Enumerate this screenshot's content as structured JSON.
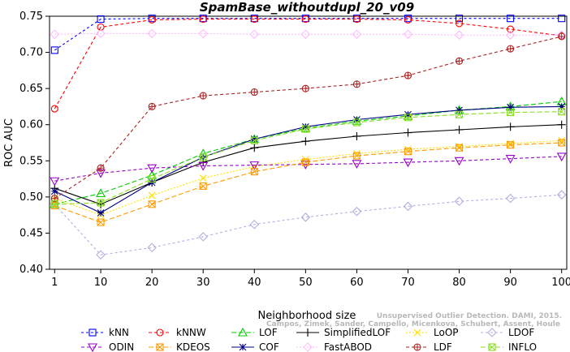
{
  "chart_data": {
    "type": "line",
    "title": "SpamBase_withoutdupl_20_v09",
    "xlabel": "Neighborhood size",
    "ylabel": "ROC AUC",
    "xlim": [
      0,
      101
    ],
    "ylim": [
      0.4,
      0.75
    ],
    "xticks": [
      1,
      10,
      20,
      30,
      40,
      50,
      60,
      70,
      80,
      90,
      100
    ],
    "yticks": [
      0.4,
      0.45,
      0.5,
      0.55,
      0.6,
      0.65,
      0.7,
      0.75
    ],
    "x": [
      1,
      10,
      20,
      30,
      40,
      50,
      60,
      70,
      80,
      90,
      100
    ],
    "grid": false,
    "legend_position": "bottom",
    "series": [
      {
        "name": "kNN",
        "color": "#0000ff",
        "marker": "square",
        "dash": "3,3",
        "values": [
          0.703,
          0.746,
          0.747,
          0.747,
          0.747,
          0.747,
          0.747,
          0.747,
          0.747,
          0.747,
          0.747
        ]
      },
      {
        "name": "kNNW",
        "color": "#ff0000",
        "marker": "circle",
        "dash": "4,3",
        "values": [
          0.622,
          0.735,
          0.745,
          0.746,
          0.746,
          0.746,
          0.746,
          0.745,
          0.74,
          0.732,
          0.723
        ]
      },
      {
        "name": "LOF",
        "color": "#00cc00",
        "marker": "triangle-up",
        "dash": "6,3",
        "values": [
          0.49,
          0.505,
          0.53,
          0.56,
          0.58,
          0.595,
          0.605,
          0.612,
          0.62,
          0.625,
          0.632
        ]
      },
      {
        "name": "SimplifiedLOF",
        "color": "#000000",
        "marker": "plus",
        "dash": "",
        "values": [
          0.512,
          0.49,
          0.52,
          0.548,
          0.568,
          0.577,
          0.584,
          0.589,
          0.593,
          0.597,
          0.6
        ]
      },
      {
        "name": "LoOP",
        "color": "#ffe000",
        "marker": "x",
        "dash": "2,2",
        "values": [
          0.498,
          0.475,
          0.502,
          0.526,
          0.542,
          0.552,
          0.56,
          0.566,
          0.57,
          0.574,
          0.578
        ]
      },
      {
        "name": "LDOF",
        "color": "#b0b0e0",
        "marker": "diamond",
        "dash": "3,3",
        "values": [
          0.49,
          0.42,
          0.43,
          0.445,
          0.462,
          0.472,
          0.48,
          0.487,
          0.494,
          0.498,
          0.503
        ]
      },
      {
        "name": "ODIN",
        "color": "#9900cc",
        "marker": "triangle-down",
        "dash": "4,3",
        "values": [
          0.522,
          0.533,
          0.54,
          0.543,
          0.544,
          0.545,
          0.546,
          0.548,
          0.55,
          0.553,
          0.556
        ]
      },
      {
        "name": "KDEOS",
        "color": "#ff9900",
        "marker": "boxx",
        "dash": "6,3",
        "values": [
          0.488,
          0.465,
          0.49,
          0.515,
          0.535,
          0.548,
          0.557,
          0.563,
          0.568,
          0.572,
          0.575
        ]
      },
      {
        "name": "COF",
        "color": "#000080",
        "marker": "star",
        "dash": "",
        "values": [
          0.508,
          0.478,
          0.52,
          0.555,
          0.58,
          0.597,
          0.607,
          0.614,
          0.62,
          0.624,
          0.625
        ]
      },
      {
        "name": "FastABOD",
        "color": "#ffbbff",
        "marker": "diamond",
        "dash": "2,2",
        "values": [
          0.725,
          0.726,
          0.726,
          0.726,
          0.725,
          0.725,
          0.725,
          0.725,
          0.724,
          0.724,
          0.724
        ]
      },
      {
        "name": "LDF",
        "color": "#aa2222",
        "marker": "circleplus",
        "dash": "4,3",
        "values": [
          0.498,
          0.54,
          0.625,
          0.64,
          0.645,
          0.65,
          0.656,
          0.668,
          0.688,
          0.705,
          0.722
        ]
      },
      {
        "name": "INFLO",
        "color": "#88dd22",
        "marker": "boxx",
        "dash": "6,3",
        "values": [
          0.49,
          0.492,
          0.525,
          0.555,
          0.578,
          0.594,
          0.603,
          0.61,
          0.614,
          0.617,
          0.618
        ]
      }
    ],
    "watermark": [
      "Unsupervised Outlier Detection. DAMI, 2015.",
      "Campos, Zimek, Sander, Campello, Micenkova, Schubert, Assent, Houle"
    ]
  }
}
